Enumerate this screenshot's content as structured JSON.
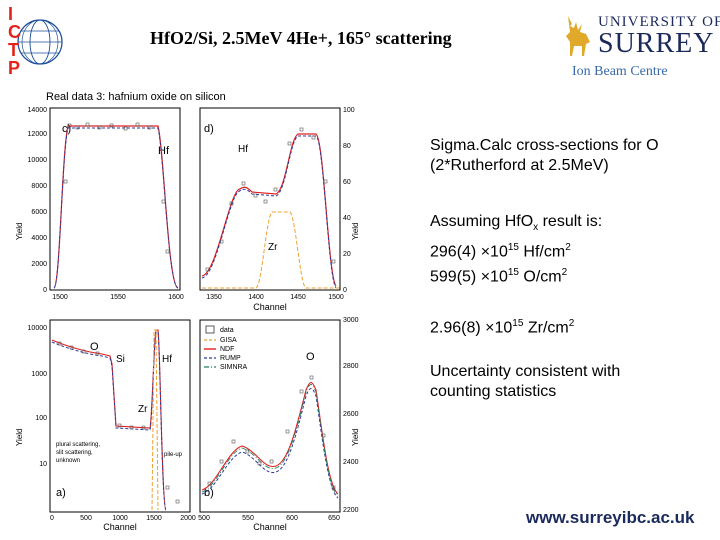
{
  "header": {
    "title": "HfO2/Si, 2.5MeV 4He+, 165° scattering",
    "ictp_letters": [
      "I",
      "C",
      "T",
      "P"
    ],
    "university_line": "UNIVERSITY OF",
    "university_name": "SURREY",
    "centre": "Ion Beam Centre"
  },
  "figure": {
    "title": "Real data 3: hafnium oxide on silicon",
    "panels": {
      "c": {
        "label": "c)",
        "element": "Hf",
        "xticks": [
          "1500",
          "1550",
          "1600"
        ],
        "yticks": [
          "0",
          "2000",
          "4000",
          "6000",
          "8000",
          "10000",
          "12000",
          "14000"
        ],
        "ylabel": "Yield"
      },
      "d": {
        "label": "d)",
        "hf_label": "Hf",
        "zr_label": "Zr",
        "xticks": [
          "1350",
          "1400",
          "1450",
          "1500"
        ],
        "yticks": [
          "0",
          "20",
          "40",
          "60",
          "80",
          "100"
        ],
        "ylabel": "Yield",
        "xlabel": "Channel"
      },
      "a": {
        "label": "a)",
        "o_label": "O",
        "si_label": "Si",
        "hf_label": "Hf",
        "zr_label": "Zr",
        "xticks": [
          "0",
          "500",
          "1000",
          "1500",
          "2000"
        ],
        "yticks": [
          "10",
          "100",
          "1000",
          "10000"
        ],
        "ylabel": "Yield",
        "xlabel": "Channel",
        "annotation": [
          "plural scattering,",
          "slit scattering,",
          "unknown"
        ],
        "pileup": "pile-up"
      },
      "b": {
        "label": "b)",
        "o_label": "O",
        "xticks": [
          "500",
          "550",
          "600",
          "650"
        ],
        "yticks": [
          "2200",
          "2400",
          "2600",
          "2800",
          "3000"
        ],
        "ylabel": "Yield",
        "xlabel": "Channel"
      }
    },
    "legend": [
      {
        "name": "data",
        "color": "#333333"
      },
      {
        "name": "GISA",
        "color": "#f0a030"
      },
      {
        "name": "NDF",
        "color": "#e02020"
      },
      {
        "name": "RUMP",
        "color": "#2a3aa0"
      },
      {
        "name": "SIMNRA",
        "color": "#208060"
      }
    ]
  },
  "text": {
    "sigma_line1": "Sigma.Calc cross-sections for O",
    "sigma_line2": "(2*Rutherford at 2.5MeV)",
    "assume_pre": "Assuming HfO",
    "assume_sub": "x",
    "assume_post": " result is:",
    "hf_pre": "296(4) ×10",
    "hf_exp": "15",
    "hf_unit": " Hf/cm",
    "hf_unit_exp": "2",
    "o_pre": "599(5) ×10",
    "o_exp": "15",
    "o_unit": " O/cm",
    "o_unit_exp": "2",
    "zr_pre": "2.96(8) ×10",
    "zr_exp": "15",
    "zr_unit": " Zr/cm",
    "zr_unit_exp": "2",
    "unc_line1": "Uncertainty consistent with",
    "unc_line2": "counting statistics"
  },
  "footer": {
    "website": "www.surreyibc.ac.uk"
  },
  "colors": {
    "navy": "#1b2a5c",
    "ictp_red": "#e2231a",
    "ictp_blue": "#1d4e9a",
    "ibc_blue": "#3a6aa8"
  }
}
